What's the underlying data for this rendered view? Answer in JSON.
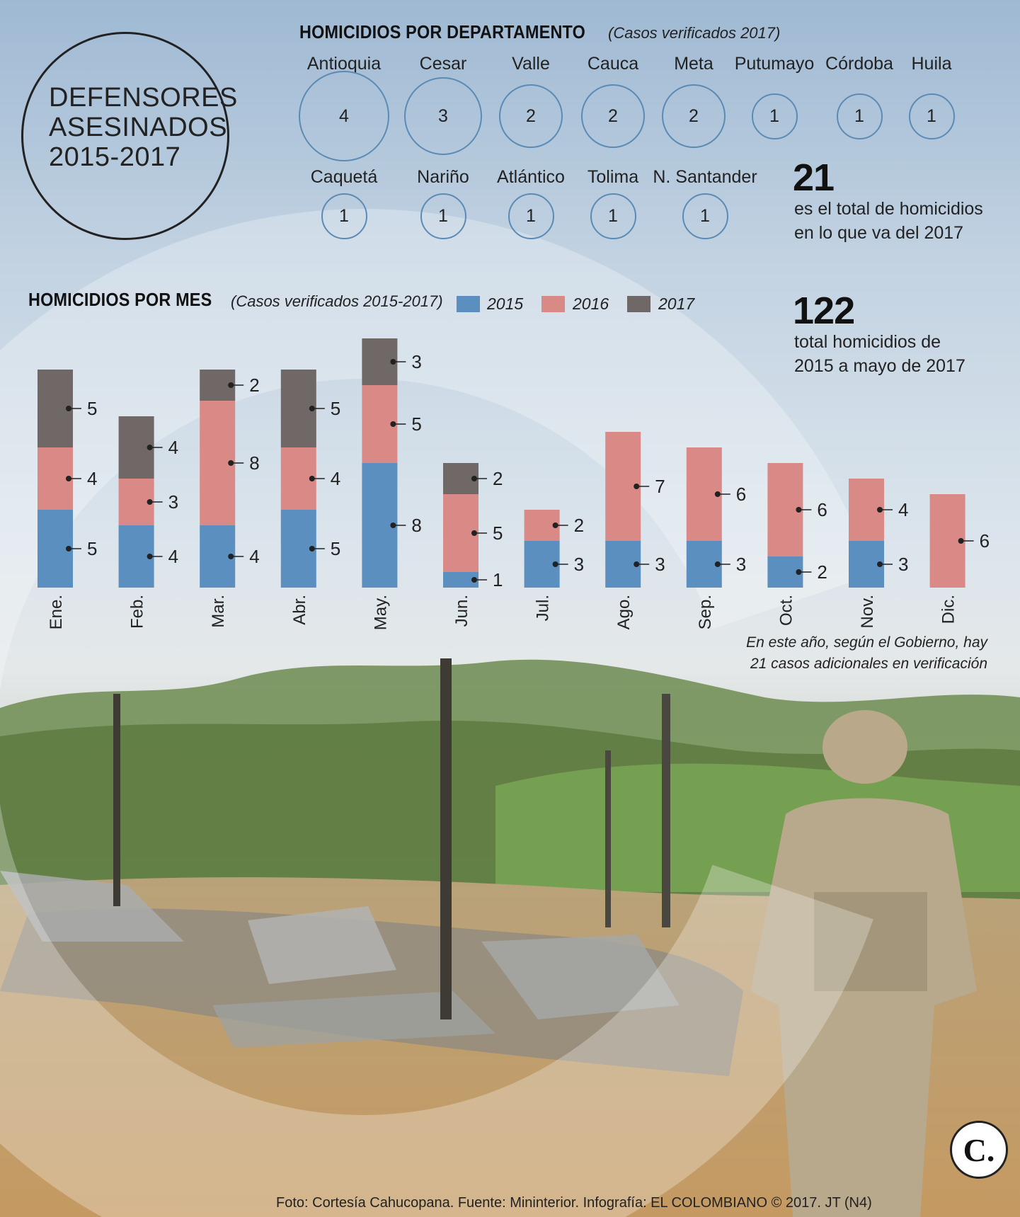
{
  "title": {
    "line1": "DEFENSORES",
    "line2": "ASESINADOS",
    "line3": "2015-2017"
  },
  "departments": {
    "heading": "HOMICIDIOS POR DEPARTAMENTO",
    "subheading": "(Casos verificados 2017)",
    "items": [
      {
        "name": "Antioquia",
        "value": 4
      },
      {
        "name": "Cesar",
        "value": 3
      },
      {
        "name": "Valle",
        "value": 2
      },
      {
        "name": "Cauca",
        "value": 2
      },
      {
        "name": "Meta",
        "value": 2
      },
      {
        "name": "Putumayo",
        "value": 1
      },
      {
        "name": "Córdoba",
        "value": 1
      },
      {
        "name": "Huila",
        "value": 1
      },
      {
        "name": "Caquetá",
        "value": 1
      },
      {
        "name": "Nariño",
        "value": 1
      },
      {
        "name": "Atlántico",
        "value": 1
      },
      {
        "name": "Tolima",
        "value": 1
      },
      {
        "name": "N. Santander",
        "value": 1
      }
    ]
  },
  "stat_2017": {
    "number": "21",
    "line1": "es el total de homicidios",
    "line2": "en lo que va del 2017"
  },
  "stat_total": {
    "number": "122",
    "line1": "total homicidios de",
    "line2": "2015 a mayo de 2017"
  },
  "monthly": {
    "heading": "HOMICIDIOS POR MES",
    "subheading": "(Casos verificados 2015-2017)"
  },
  "note": {
    "line1": "En este año, según el Gobierno, hay",
    "line2": "21 casos adicionales en verificación"
  },
  "credit": "Foto: Cortesía Cahucopana. Fuente: Mininterior. Infografía: EL COLOMBIANO © 2017. JT (N4)",
  "logo": "C.",
  "colors": {
    "2015": "#5b8fc0",
    "2016": "#d98a86",
    "2017": "#6f6866",
    "circle_border": "#5b8bb5"
  },
  "chart_data": {
    "type": "bar",
    "stacked": true,
    "title": "HOMICIDIOS POR MES",
    "subtitle": "(Casos verificados 2015-2017)",
    "categories": [
      "Ene.",
      "Feb.",
      "Mar.",
      "Abr.",
      "May.",
      "Jun.",
      "Jul.",
      "Ago.",
      "Sep.",
      "Oct.",
      "Nov.",
      "Dic."
    ],
    "series": [
      {
        "name": "2015",
        "values": [
          5,
          4,
          4,
          5,
          8,
          1,
          3,
          3,
          3,
          2,
          3,
          0
        ]
      },
      {
        "name": "2016",
        "values": [
          4,
          3,
          8,
          4,
          5,
          5,
          2,
          7,
          6,
          6,
          4,
          6
        ]
      },
      {
        "name": "2017",
        "values": [
          5,
          4,
          2,
          5,
          3,
          2,
          0,
          0,
          0,
          0,
          0,
          0
        ]
      }
    ],
    "legend": "top",
    "grid": false
  }
}
